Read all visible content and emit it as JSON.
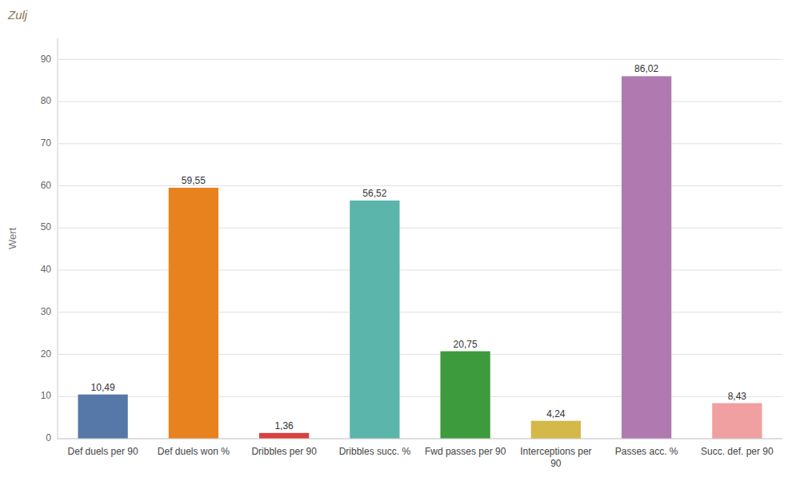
{
  "chart_data": {
    "type": "bar",
    "title": "Zulj",
    "ylabel": "Wert",
    "categories": [
      "Def duels per 90",
      "Def duels won %",
      "Dribbles per 90",
      "Dribbles succ. %",
      "Fwd passes per 90",
      "Interceptions per 90",
      "Passes acc. %",
      "Succ. def. per 90"
    ],
    "values": [
      10.49,
      59.55,
      1.36,
      56.52,
      20.75,
      4.24,
      86.02,
      8.43
    ],
    "value_labels": [
      "10,49",
      "59,55",
      "1,36",
      "56,52",
      "20,75",
      "4,24",
      "86,02",
      "8,43"
    ],
    "colors": [
      "#5578a8",
      "#e8821e",
      "#d94040",
      "#5bb5aa",
      "#3d9b3d",
      "#d4b84a",
      "#b07ab0",
      "#f0a0a0"
    ],
    "ylim": [
      0,
      95
    ],
    "yticks": [
      0,
      10,
      20,
      30,
      40,
      50,
      60,
      70,
      80,
      90
    ],
    "grid": true,
    "data_labels": true
  }
}
